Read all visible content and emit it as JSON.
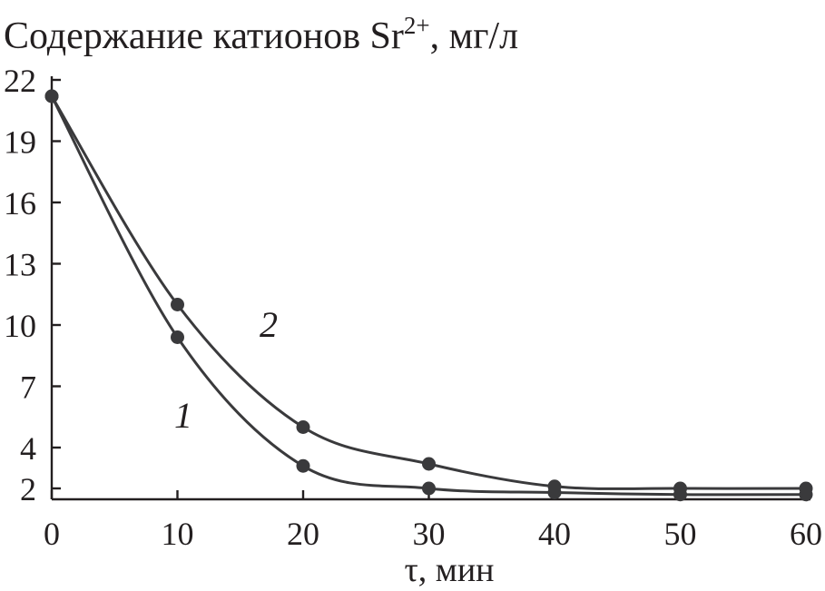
{
  "chart_data": {
    "type": "line",
    "ylabel": {
      "main": "Содержание катионов Sr",
      "superscript": "2+",
      "unit": ", мг/л"
    },
    "xlabel": "τ, мин",
    "xlim": [
      0,
      60
    ],
    "ylim": [
      1.5,
      22
    ],
    "x_ticks": [
      "0",
      "10",
      "20",
      "30",
      "40",
      "50",
      "60"
    ],
    "y_ticks": [
      "2",
      "4",
      "7",
      "10",
      "13",
      "16",
      "19",
      "22"
    ],
    "x": [
      0,
      10,
      20,
      30,
      40,
      50,
      60
    ],
    "series": [
      {
        "name": "1",
        "values": [
          21.2,
          9.4,
          3.1,
          2.0,
          1.8,
          1.7,
          1.7
        ]
      },
      {
        "name": "2",
        "values": [
          21.2,
          11.0,
          5.0,
          3.2,
          2.1,
          2.0,
          2.0
        ]
      }
    ],
    "grid": false,
    "colors": {
      "line": "#3a3a3c",
      "text": "#231f20"
    }
  }
}
